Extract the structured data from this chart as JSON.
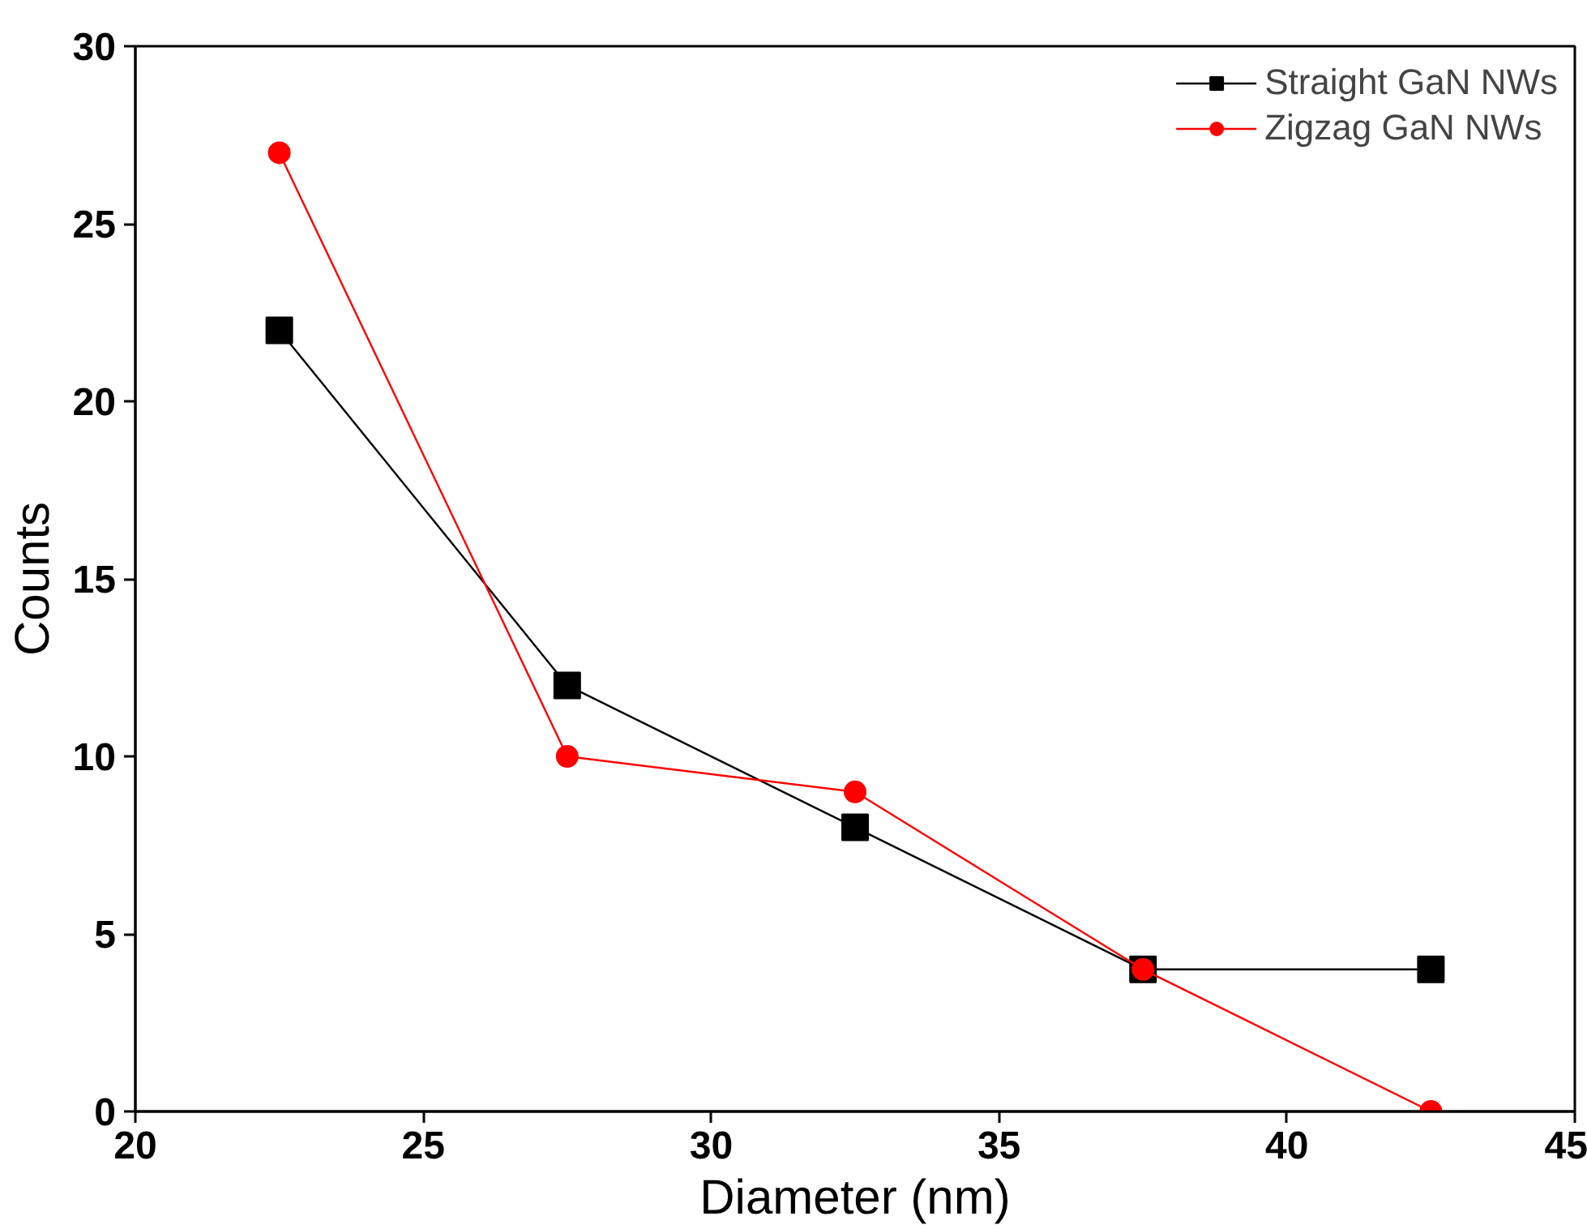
{
  "chart_data": {
    "type": "line",
    "xlabel": "Diameter (nm)",
    "ylabel": "Counts",
    "x": [
      22.5,
      27.5,
      32.5,
      37.5,
      42.5
    ],
    "series": [
      {
        "name": "Straight GaN NWs",
        "color": "#000000",
        "marker": "square",
        "values": [
          22,
          12,
          8,
          4,
          4
        ]
      },
      {
        "name": "Zigzag GaN NWs",
        "color": "#ff0000",
        "marker": "circle",
        "values": [
          27,
          10,
          9,
          4,
          0
        ]
      }
    ],
    "xlim": [
      20,
      45
    ],
    "ylim": [
      0,
      30
    ],
    "xticks": [
      20,
      25,
      30,
      35,
      40,
      45
    ],
    "yticks": [
      0,
      5,
      10,
      15,
      20,
      25,
      30
    ],
    "grid": false,
    "legend": "top right",
    "line_style": "solid"
  }
}
